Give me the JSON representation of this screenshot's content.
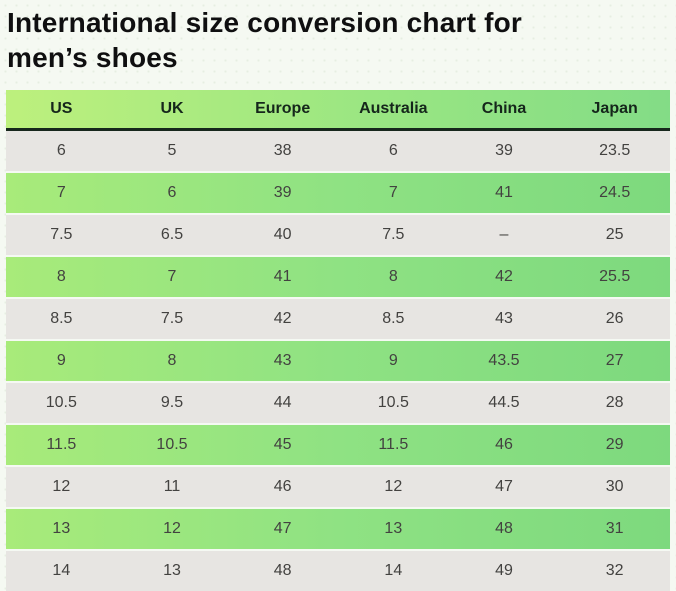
{
  "title": {
    "line1": "International size conversion chart for",
    "line2": "men’s shoes"
  },
  "table": {
    "headers": [
      "US",
      "UK",
      "Europe",
      "Australia",
      "China",
      "Japan"
    ],
    "rows": [
      [
        "6",
        "5",
        "38",
        "6",
        "39",
        "23.5"
      ],
      [
        "7",
        "6",
        "39",
        "7",
        "41",
        "24.5"
      ],
      [
        "7.5",
        "6.5",
        "40",
        "7.5",
        "–",
        "25"
      ],
      [
        "8",
        "7",
        "41",
        "8",
        "42",
        "25.5"
      ],
      [
        "8.5",
        "7.5",
        "42",
        "8.5",
        "43",
        "26"
      ],
      [
        "9",
        "8",
        "43",
        "9",
        "43.5",
        "27"
      ],
      [
        "10.5",
        "9.5",
        "44",
        "10.5",
        "44.5",
        "28"
      ],
      [
        "11.5",
        "10.5",
        "45",
        "11.5",
        "46",
        "29"
      ],
      [
        "12",
        "11",
        "46",
        "12",
        "47",
        "30"
      ],
      [
        "13",
        "12",
        "47",
        "13",
        "48",
        "31"
      ],
      [
        "14",
        "13",
        "48",
        "14",
        "49",
        "32"
      ]
    ]
  },
  "colors": {
    "page_background": "#f5f9f2",
    "header_gradient_start": "#bdf07d",
    "header_gradient_end": "#83dc86",
    "row_green_gradient_start": "#a8eb7a",
    "row_green_gradient_end": "#7dd97e",
    "row_gray": "#e7e5e2",
    "header_bottom_border": "#17271c",
    "title_text": "#0f0f10",
    "cell_text": "#434240",
    "header_text": "#15261b"
  }
}
